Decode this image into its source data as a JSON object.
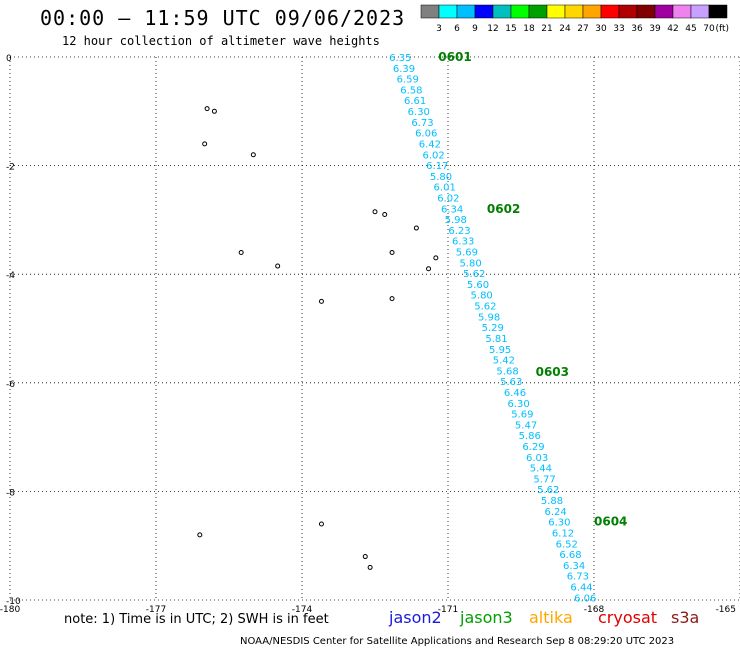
{
  "header": {
    "title": "00:00 – 11:59 UTC 09/06/2023",
    "subtitle": "12 hour collection of altimeter wave heights"
  },
  "legend": {
    "ticks": [
      "3",
      "6",
      "9",
      "12",
      "15",
      "18",
      "21",
      "24",
      "27",
      "30",
      "33",
      "36",
      "39",
      "42",
      "45",
      "70"
    ],
    "unit": "(ft)",
    "colors": [
      "#808080",
      "#00ffff",
      "#00bfff",
      "#0000ff",
      "#00bfbf",
      "#00ff00",
      "#00a000",
      "#ffff00",
      "#ffd700",
      "#ffa500",
      "#ff0000",
      "#b00000",
      "#800000",
      "#a000a0",
      "#ee82ee",
      "#c8a0ff",
      "#000000"
    ]
  },
  "footer": {
    "note": "note:  1) Time is in UTC;  2) SWH is in feet",
    "credit": "NOAA/NESDIS Center for Satellite Applications and Research    Sep  8 08:29:20 UTC 2023",
    "satellites": [
      {
        "name": "jason2",
        "color": "#1a1adc"
      },
      {
        "name": "jason3",
        "color": "#00a000"
      },
      {
        "name": "altika",
        "color": "#ffa500"
      },
      {
        "name": "cryosat",
        "color": "#e00000"
      },
      {
        "name": "s3a",
        "color": "#8b1a1a"
      }
    ]
  },
  "chart_data": {
    "type": "scatter",
    "title": "00:00 – 11:59 UTC 09/06/2023",
    "xlabel": "",
    "ylabel": "",
    "xlim": [
      -180,
      -165
    ],
    "ylim": [
      -10,
      0
    ],
    "x_ticks": [
      "-180",
      "-177",
      "-174",
      "-171",
      "-168",
      "-165"
    ],
    "y_ticks": [
      "0",
      "-2",
      "-4",
      "-6",
      "-8",
      "-10"
    ],
    "grid": true,
    "track_color": "#00bfff",
    "track": {
      "x_start": -171.98,
      "y_start": 0.0,
      "x_end": -168.18,
      "y_end": -9.95,
      "values": [
        "6.35",
        "6.39",
        "6.59",
        "6.58",
        "6.61",
        "6.30",
        "6.73",
        "6.06",
        "6.42",
        "6.02",
        "6.17",
        "5.80",
        "6.01",
        "6.02",
        "6.34",
        "5.98",
        "6.23",
        "6.33",
        "5.69",
        "5.80",
        "5.62",
        "5.60",
        "5.80",
        "5.62",
        "5.98",
        "5.29",
        "5.81",
        "5.95",
        "5.42",
        "5.68",
        "5.63",
        "6.46",
        "6.30",
        "5.69",
        "5.47",
        "5.86",
        "6.29",
        "6.03",
        "5.44",
        "5.77",
        "5.62",
        "5.88",
        "6.24",
        "6.30",
        "6.12",
        "6.52",
        "6.68",
        "6.34",
        "6.73",
        "6.44",
        "6.06"
      ]
    },
    "time_labels": [
      {
        "text": "0601",
        "lon": -171.2,
        "lat": 0.0,
        "color": "#008000"
      },
      {
        "text": "0602",
        "lon": -170.2,
        "lat": -2.8,
        "color": "#008000"
      },
      {
        "text": "0603",
        "lon": -169.2,
        "lat": -5.8,
        "color": "#008000"
      },
      {
        "text": "0604",
        "lon": -168.0,
        "lat": -8.55,
        "color": "#008000"
      }
    ],
    "islands": [
      {
        "lon": -175.95,
        "lat": -0.95
      },
      {
        "lon": -175.8,
        "lat": -1.0
      },
      {
        "lon": -176.0,
        "lat": -1.6
      },
      {
        "lon": -175.0,
        "lat": -1.8
      },
      {
        "lon": -172.5,
        "lat": -2.85
      },
      {
        "lon": -172.3,
        "lat": -2.9
      },
      {
        "lon": -171.65,
        "lat": -3.15
      },
      {
        "lon": -172.15,
        "lat": -3.6
      },
      {
        "lon": -171.25,
        "lat": -3.7
      },
      {
        "lon": -171.4,
        "lat": -3.9
      },
      {
        "lon": -175.25,
        "lat": -3.6
      },
      {
        "lon": -174.5,
        "lat": -3.85
      },
      {
        "lon": -173.6,
        "lat": -4.5
      },
      {
        "lon": -172.15,
        "lat": -4.45
      },
      {
        "lon": -173.6,
        "lat": -8.6
      },
      {
        "lon": -176.1,
        "lat": -8.8
      },
      {
        "lon": -172.7,
        "lat": -9.2
      },
      {
        "lon": -172.6,
        "lat": -9.4
      }
    ]
  }
}
